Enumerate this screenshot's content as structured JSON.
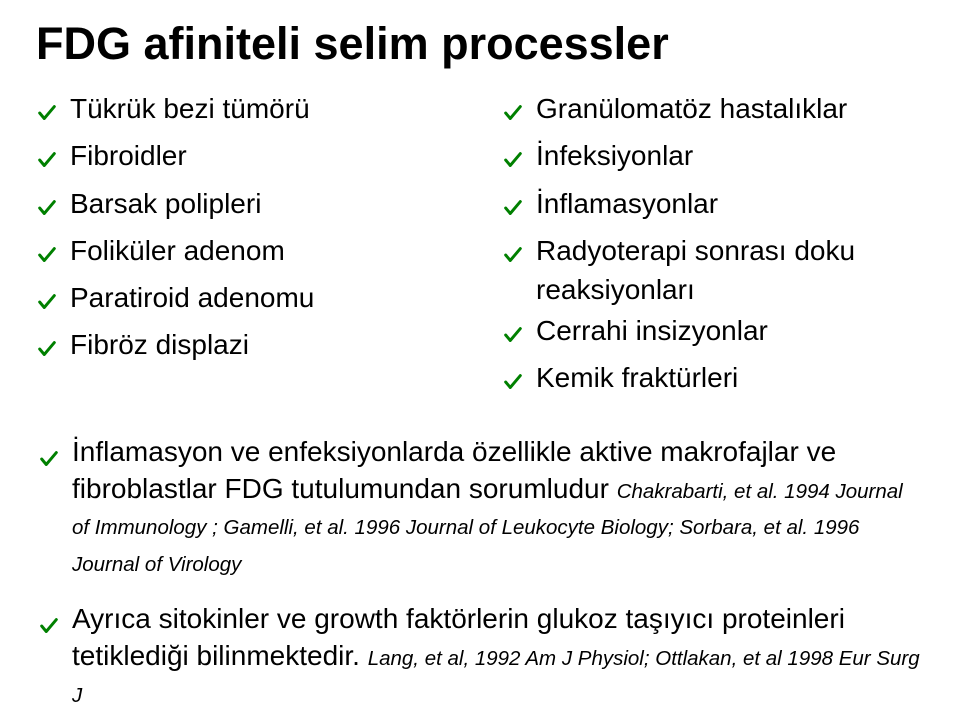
{
  "title": "FDG afiniteli selim processler",
  "checkmark_color": "#008000",
  "text_color": "#000000",
  "background_color": "#ffffff",
  "list_fontsize_pt": 21,
  "title_fontsize_pt": 34,
  "ref_fontsize_pt": 15,
  "left_col": [
    "Tükrük bezi tümörü",
    "Fibroidler",
    "Barsak polipleri",
    "Foliküler adenom",
    "Paratiroid adenomu",
    "Fibröz displazi"
  ],
  "right_col": [
    "Granülomatöz hastalıklar",
    "İnfeksiyonlar",
    "İnflamasyonlar",
    "Radyoterapi sonrası doku reaksiyonları",
    "Cerrahi insizyonlar",
    "Kemik fraktürleri"
  ],
  "lower": [
    {
      "text": "İnflamasyon ve enfeksiyonlarda özellikle aktive makrofajlar ve fibroblastlar FDG tutulumundan sorumludur ",
      "ref": "Chakrabarti, et al. 1994 Journal of Immunology ; Gamelli, et al. 1996 Journal of Leukocyte Biology; Sorbara, et al. 1996 Journal of Virology"
    },
    {
      "text": "Ayrıca sitokinler ve growth faktörlerin glukoz taşıyıcı proteinleri tetiklediği bilinmektedir. ",
      "ref": "Lang, et al, 1992 Am J Physiol;  Ottlakan, et al 1998   Eur Surg J"
    }
  ]
}
